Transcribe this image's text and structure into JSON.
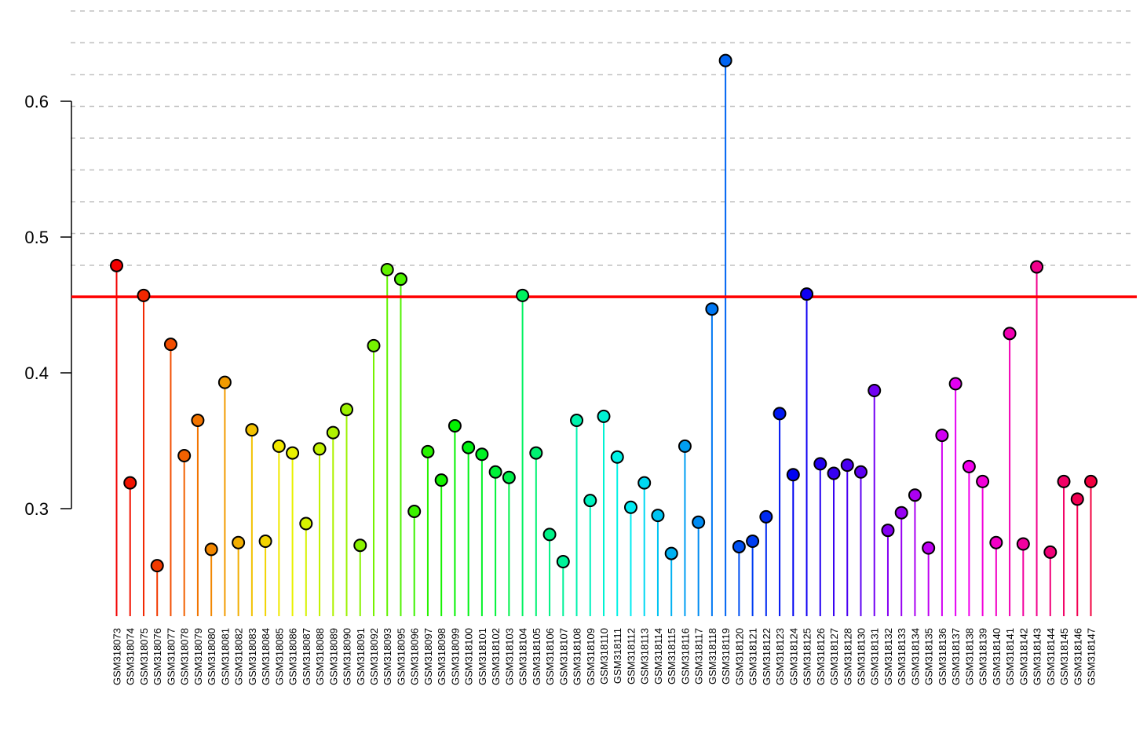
{
  "chart_data": {
    "type": "lollipop",
    "title": "",
    "xlabel": "",
    "ylabel": "",
    "ylim": [
      0.22,
      0.67
    ],
    "y_axis_ticks": [
      "0.3",
      "0.4",
      "0.5",
      "0.6"
    ],
    "y_axis_tick_values": [
      0.3,
      0.4,
      0.5,
      0.6
    ],
    "grid": "horizontal dashed gray",
    "threshold_line": {
      "value": 0.456,
      "color": "#ff0000"
    },
    "colors": {
      "threshold": "#ff0000",
      "grid": "#c0c0c0",
      "axis": "#000000"
    },
    "categories": [
      "GSM318073",
      "GSM318074",
      "GSM318075",
      "GSM318076",
      "GSM318077",
      "GSM318078",
      "GSM318079",
      "GSM318080",
      "GSM318081",
      "GSM318082",
      "GSM318083",
      "GSM318084",
      "GSM318085",
      "GSM318086",
      "GSM318087",
      "GSM318088",
      "GSM318089",
      "GSM318090",
      "GSM318091",
      "GSM318092",
      "GSM318093",
      "GSM318095",
      "GSM318096",
      "GSM318097",
      "GSM318098",
      "GSM318099",
      "GSM318100",
      "GSM318101",
      "GSM318102",
      "GSM318103",
      "GSM318104",
      "GSM318105",
      "GSM318106",
      "GSM318107",
      "GSM318108",
      "GSM318109",
      "GSM318110",
      "GSM318111",
      "GSM318112",
      "GSM318113",
      "GSM318114",
      "GSM318115",
      "GSM318116",
      "GSM318117",
      "GSM318118",
      "GSM318119",
      "GSM318120",
      "GSM318121",
      "GSM318122",
      "GSM318123",
      "GSM318124",
      "GSM318125",
      "GSM318126",
      "GSM318127",
      "GSM318128",
      "GSM318130",
      "GSM318131",
      "GSM318132",
      "GSM318133",
      "GSM318134",
      "GSM318135",
      "GSM318136",
      "GSM318137",
      "GSM318138",
      "GSM318139",
      "GSM318140",
      "GSM318141",
      "GSM318142",
      "GSM318143",
      "GSM318144",
      "GSM318145",
      "GSM318146",
      "GSM318147"
    ],
    "values": [
      0.479,
      0.319,
      0.457,
      0.258,
      0.421,
      0.339,
      0.365,
      0.27,
      0.393,
      0.275,
      0.358,
      0.276,
      0.346,
      0.341,
      0.289,
      0.344,
      0.356,
      0.373,
      0.273,
      0.42,
      0.476,
      0.469,
      0.298,
      0.342,
      0.321,
      0.361,
      0.345,
      0.34,
      0.327,
      0.323,
      0.457,
      0.341,
      0.281,
      0.261,
      0.365,
      0.306,
      0.368,
      0.338,
      0.301,
      0.319,
      0.295,
      0.267,
      0.346,
      0.29,
      0.447,
      0.63,
      0.272,
      0.276,
      0.294,
      0.37,
      0.325,
      0.458,
      0.333,
      0.326,
      0.332,
      0.327,
      0.387,
      0.284,
      0.297,
      0.31,
      0.271,
      0.354,
      0.392,
      0.331,
      0.32,
      0.275,
      0.429,
      0.274,
      0.478,
      0.268,
      0.32,
      0.307,
      0.32
    ]
  }
}
